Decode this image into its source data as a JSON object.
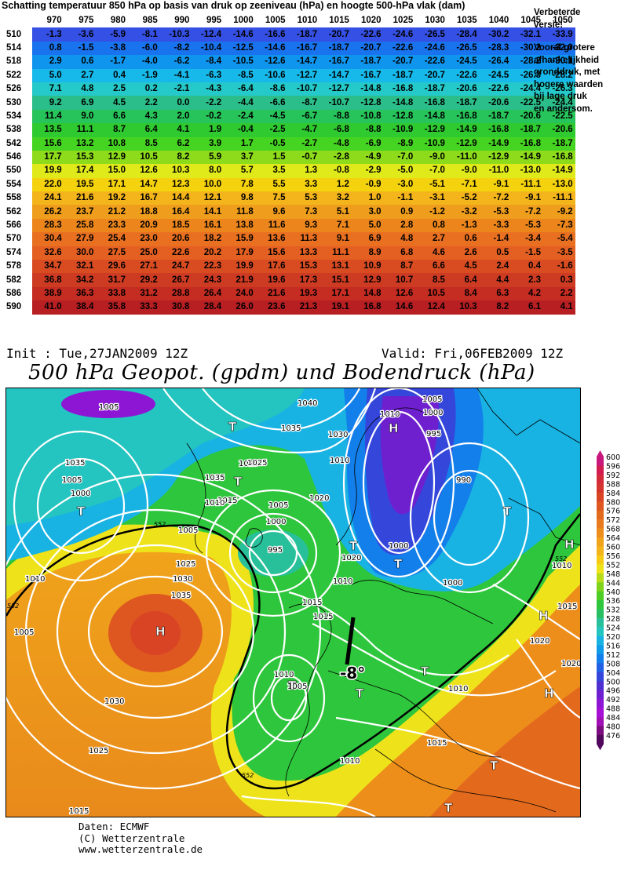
{
  "table": {
    "title": "Schatting temperatuur 850 hPa op basis van druk op zeeniveau (hPa) en hoogte 500-hPa vlak (dam)",
    "pressures": [
      "970",
      "975",
      "980",
      "985",
      "990",
      "995",
      "1000",
      "1005",
      "1010",
      "1015",
      "1020",
      "1025",
      "1030",
      "1035",
      "1040",
      "1045",
      "1050"
    ],
    "rows": [
      {
        "height": "510",
        "values": [
          "-1.3",
          "-3.6",
          "-5.9",
          "-8.1",
          "-10.3",
          "-12.4",
          "-14.6",
          "-16.6",
          "-18.7",
          "-20.7",
          "-22.6",
          "-24.6",
          "-26.5",
          "-28.4",
          "-30.2",
          "-32.1",
          "-33.9"
        ]
      },
      {
        "height": "514",
        "values": [
          "0.8",
          "-1.5",
          "-3.8",
          "-6.0",
          "-8.2",
          "-10.4",
          "-12.5",
          "-14.6",
          "-16.7",
          "-18.7",
          "-20.7",
          "-22.6",
          "-24.6",
          "-26.5",
          "-28.3",
          "-30.2",
          "-32.0"
        ]
      },
      {
        "height": "518",
        "values": [
          "2.9",
          "0.6",
          "-1.7",
          "-4.0",
          "-6.2",
          "-8.4",
          "-10.5",
          "-12.6",
          "-14.7",
          "-16.7",
          "-18.7",
          "-20.7",
          "-22.6",
          "-24.5",
          "-26.4",
          "-28.2",
          "-30.1"
        ]
      },
      {
        "height": "522",
        "values": [
          "5.0",
          "2.7",
          "0.4",
          "-1.9",
          "-4.1",
          "-6.3",
          "-8.5",
          "-10.6",
          "-12.7",
          "-14.7",
          "-16.7",
          "-18.7",
          "-20.7",
          "-22.6",
          "-24.5",
          "-26.3",
          "-28.2"
        ]
      },
      {
        "height": "526",
        "values": [
          "7.1",
          "4.8",
          "2.5",
          "0.2",
          "-2.1",
          "-4.3",
          "-6.4",
          "-8.6",
          "-10.7",
          "-12.7",
          "-14.8",
          "-16.8",
          "-18.7",
          "-20.6",
          "-22.6",
          "-24.4",
          "-26.3"
        ]
      },
      {
        "height": "530",
        "values": [
          "9.2",
          "6.9",
          "4.5",
          "2.2",
          "0.0",
          "-2.2",
          "-4.4",
          "-6.6",
          "-8.7",
          "-10.7",
          "-12.8",
          "-14.8",
          "-16.8",
          "-18.7",
          "-20.6",
          "-22.5",
          "-24.4"
        ]
      },
      {
        "height": "534",
        "values": [
          "11.4",
          "9.0",
          "6.6",
          "4.3",
          "2.0",
          "-0.2",
          "-2.4",
          "-4.5",
          "-6.7",
          "-8.8",
          "-10.8",
          "-12.8",
          "-14.8",
          "-16.8",
          "-18.7",
          "-20.6",
          "-22.5"
        ]
      },
      {
        "height": "538",
        "values": [
          "13.5",
          "11.1",
          "8.7",
          "6.4",
          "4.1",
          "1.9",
          "-0.4",
          "-2.5",
          "-4.7",
          "-6.8",
          "-8.8",
          "-10.9",
          "-12.9",
          "-14.9",
          "-16.8",
          "-18.7",
          "-20.6"
        ]
      },
      {
        "height": "542",
        "values": [
          "15.6",
          "13.2",
          "10.8",
          "8.5",
          "6.2",
          "3.9",
          "1.7",
          "-0.5",
          "-2.7",
          "-4.8",
          "-6.9",
          "-8.9",
          "-10.9",
          "-12.9",
          "-14.9",
          "-16.8",
          "-18.7"
        ]
      },
      {
        "height": "546",
        "values": [
          "17.7",
          "15.3",
          "12.9",
          "10.5",
          "8.2",
          "5.9",
          "3.7",
          "1.5",
          "-0.7",
          "-2.8",
          "-4.9",
          "-7.0",
          "-9.0",
          "-11.0",
          "-12.9",
          "-14.9",
          "-16.8"
        ]
      },
      {
        "height": "550",
        "values": [
          "19.9",
          "17.4",
          "15.0",
          "12.6",
          "10.3",
          "8.0",
          "5.7",
          "3.5",
          "1.3",
          "-0.8",
          "-2.9",
          "-5.0",
          "-7.0",
          "-9.0",
          "-11.0",
          "-13.0",
          "-14.9"
        ]
      },
      {
        "height": "554",
        "values": [
          "22.0",
          "19.5",
          "17.1",
          "14.7",
          "12.3",
          "10.0",
          "7.8",
          "5.5",
          "3.3",
          "1.2",
          "-0.9",
          "-3.0",
          "-5.1",
          "-7.1",
          "-9.1",
          "-11.1",
          "-13.0"
        ]
      },
      {
        "height": "558",
        "values": [
          "24.1",
          "21.6",
          "19.2",
          "16.7",
          "14.4",
          "12.1",
          "9.8",
          "7.5",
          "5.3",
          "3.2",
          "1.0",
          "-1.1",
          "-3.1",
          "-5.2",
          "-7.2",
          "-9.1",
          "-11.1"
        ]
      },
      {
        "height": "562",
        "values": [
          "26.2",
          "23.7",
          "21.2",
          "18.8",
          "16.4",
          "14.1",
          "11.8",
          "9.6",
          "7.3",
          "5.1",
          "3.0",
          "0.9",
          "-1.2",
          "-3.2",
          "-5.3",
          "-7.2",
          "-9.2"
        ]
      },
      {
        "height": "566",
        "values": [
          "28.3",
          "25.8",
          "23.3",
          "20.9",
          "18.5",
          "16.1",
          "13.8",
          "11.6",
          "9.3",
          "7.1",
          "5.0",
          "2.8",
          "0.8",
          "-1.3",
          "-3.3",
          "-5.3",
          "-7.3"
        ]
      },
      {
        "height": "570",
        "values": [
          "30.4",
          "27.9",
          "25.4",
          "23.0",
          "20.6",
          "18.2",
          "15.9",
          "13.6",
          "11.3",
          "9.1",
          "6.9",
          "4.8",
          "2.7",
          "0.6",
          "-1.4",
          "-3.4",
          "-5.4"
        ]
      },
      {
        "height": "574",
        "values": [
          "32.6",
          "30.0",
          "27.5",
          "25.0",
          "22.6",
          "20.2",
          "17.9",
          "15.6",
          "13.3",
          "11.1",
          "8.9",
          "6.8",
          "4.6",
          "2.6",
          "0.5",
          "-1.5",
          "-3.5"
        ]
      },
      {
        "height": "578",
        "values": [
          "34.7",
          "32.1",
          "29.6",
          "27.1",
          "24.7",
          "22.3",
          "19.9",
          "17.6",
          "15.3",
          "13.1",
          "10.9",
          "8.7",
          "6.6",
          "4.5",
          "2.4",
          "0.4",
          "-1.6"
        ]
      },
      {
        "height": "582",
        "values": [
          "36.8",
          "34.2",
          "31.7",
          "29.2",
          "26.7",
          "24.3",
          "21.9",
          "19.6",
          "17.3",
          "15.1",
          "12.9",
          "10.7",
          "8.5",
          "6.4",
          "4.4",
          "2.3",
          "0.3"
        ]
      },
      {
        "height": "586",
        "values": [
          "38.9",
          "36.3",
          "33.8",
          "31.2",
          "28.8",
          "26.4",
          "24.0",
          "21.6",
          "19.3",
          "17.1",
          "14.8",
          "12.6",
          "10.5",
          "8.4",
          "6.3",
          "4.2",
          "2.2"
        ]
      },
      {
        "height": "590",
        "values": [
          "41.0",
          "38.4",
          "35.8",
          "33.3",
          "30.8",
          "28.4",
          "26.0",
          "23.6",
          "21.3",
          "19.1",
          "16.8",
          "14.6",
          "12.4",
          "10.3",
          "8.2",
          "6.1",
          "4.1"
        ]
      }
    ],
    "row_colors": [
      "#3550e4",
      "#1973ee",
      "#1095ee",
      "#17b9ea",
      "#25c9c9",
      "#2bbd8a",
      "#27c35b",
      "#2fca30",
      "#45d421",
      "#8ddb1b",
      "#e0e91a",
      "#f4d20e",
      "#f3b51b",
      "#ef9d1c",
      "#ec861c",
      "#e87020",
      "#e45f22",
      "#d94c21",
      "#cd3b22",
      "#c52c22",
      "#b81f22"
    ]
  },
  "side_note": {
    "line1": "Verbeterde",
    "line2": "versie!",
    "line3": "Vooral grotere",
    "line4": "afhankelijkheid",
    "line5": "gronddruk, met",
    "line6": "hogere waarden",
    "line7": "bij lage druk",
    "line8": "en andersom."
  },
  "map": {
    "init": "Init : Tue,27JAN2009 12Z",
    "valid": "Valid: Fri,06FEB2009 12Z",
    "title": "500 hPa Geopot. (gpdm) und Bodendruck (hPa)",
    "annotation": "-8°",
    "isobar_labels": [
      "1005",
      "1040",
      "1010",
      "1005",
      "1000",
      "1035",
      "995",
      "1030",
      "1025",
      "1010",
      "1025",
      "1035",
      "1035",
      "1005",
      "1000",
      "1015",
      "1020",
      "990",
      "1000",
      "1005",
      "1010",
      "1005",
      "1020",
      "1000",
      "1010",
      "1015",
      "995",
      "1000",
      "1025",
      "1030",
      "1035",
      "1005",
      "1015",
      "1010",
      "1010",
      "1020",
      "1015",
      "1005",
      "1010",
      "1010",
      "1030",
      "1025",
      "1015",
      "1020",
      "1010",
      "1015"
    ],
    "contour_552": [
      "552",
      "552",
      "552",
      "552"
    ],
    "pressure_centers": [
      "T",
      "T",
      "T",
      "H",
      "T",
      "T",
      "T",
      "H",
      "T",
      "T",
      "H",
      "H",
      "T",
      "H",
      "T",
      "T",
      "T"
    ],
    "legend_values": [
      "600",
      "596",
      "592",
      "588",
      "584",
      "580",
      "576",
      "572",
      "568",
      "564",
      "560",
      "556",
      "552",
      "548",
      "544",
      "540",
      "536",
      "532",
      "528",
      "524",
      "520",
      "516",
      "512",
      "508",
      "504",
      "500",
      "496",
      "492",
      "488",
      "484",
      "480",
      "476"
    ],
    "legend_colors": [
      "#c8177d",
      "#d11d52",
      "#d32a3c",
      "#d5352f",
      "#d94524",
      "#de5720",
      "#e36a1d",
      "#e87b1e",
      "#ed8e1b",
      "#f0a31b",
      "#f3b51b",
      "#f6cb16",
      "#eee31a",
      "#b8dc1a",
      "#7fd41b",
      "#4fcd27",
      "#2ec63c",
      "#27bf62",
      "#28c09a",
      "#24c4c0",
      "#18b3e3",
      "#109be9",
      "#137fea",
      "#2261e3",
      "#3546db",
      "#4e31cf",
      "#6e20cf",
      "#8d15d4",
      "#a710d4",
      "#a00fb6",
      "#7b0b7e",
      "#52075e"
    ]
  },
  "credits": {
    "line1": "Daten: ECMWF",
    "line2": "(C) Wetterzentrale",
    "line3": "www.wetterzentrale.de"
  },
  "colors": {
    "contour_white": "#ffffff",
    "contour_black": "#000000"
  }
}
